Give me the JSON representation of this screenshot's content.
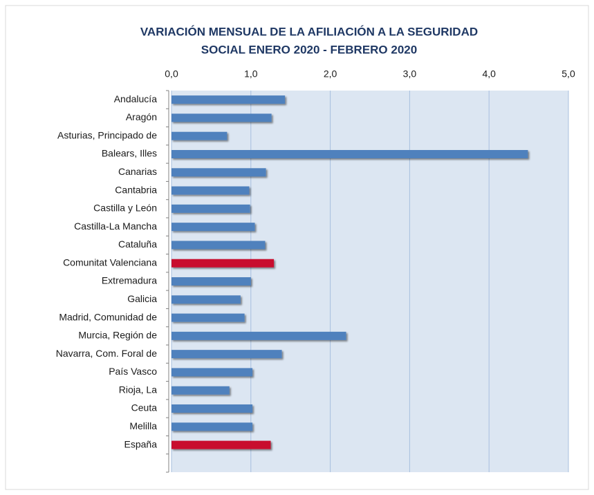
{
  "chart_data": {
    "type": "barh",
    "title": [
      "VARIACIÓN  MENSUAL  DE LA AFILIACIÓN  A LA SEGURIDAD",
      "SOCIAL ENERO 2020 - FEBRERO 2020"
    ],
    "categories": [
      "Andalucía",
      "Aragón",
      "Asturias, Principado de",
      "Balears, Illes",
      "Canarias",
      "Cantabria",
      "Castilla y León",
      "Castilla-La Mancha",
      "Cataluña",
      "Comunitat Valenciana",
      "Extremadura",
      "Galicia",
      "Madrid, Comunidad de",
      "Murcia, Región de",
      "Navarra, Com. Foral de",
      "País Vasco",
      "Rioja, La",
      "Ceuta",
      "Melilla",
      "España",
      null
    ],
    "values": [
      1.43,
      1.26,
      0.7,
      4.49,
      1.19,
      0.98,
      0.99,
      1.05,
      1.18,
      1.29,
      1.0,
      0.87,
      0.92,
      2.2,
      1.39,
      1.02,
      0.73,
      1.02,
      1.02,
      1.25,
      null
    ],
    "colors": [
      "#4f81bd",
      "#4f81bd",
      "#4f81bd",
      "#4f81bd",
      "#4f81bd",
      "#4f81bd",
      "#4f81bd",
      "#4f81bd",
      "#4f81bd",
      "#c8102e",
      "#4f81bd",
      "#4f81bd",
      "#4f81bd",
      "#4f81bd",
      "#4f81bd",
      "#4f81bd",
      "#4f81bd",
      "#4f81bd",
      "#4f81bd",
      "#c8102e",
      null
    ],
    "xlim": [
      0,
      5
    ],
    "xticks": [
      {
        "value": 0,
        "label": "0,0"
      },
      {
        "value": 1,
        "label": "1,0"
      },
      {
        "value": 2,
        "label": "2,0"
      },
      {
        "value": 3,
        "label": "3,0"
      },
      {
        "value": 4,
        "label": "4,0"
      },
      {
        "value": 5,
        "label": "5,0"
      }
    ],
    "grid": true
  }
}
